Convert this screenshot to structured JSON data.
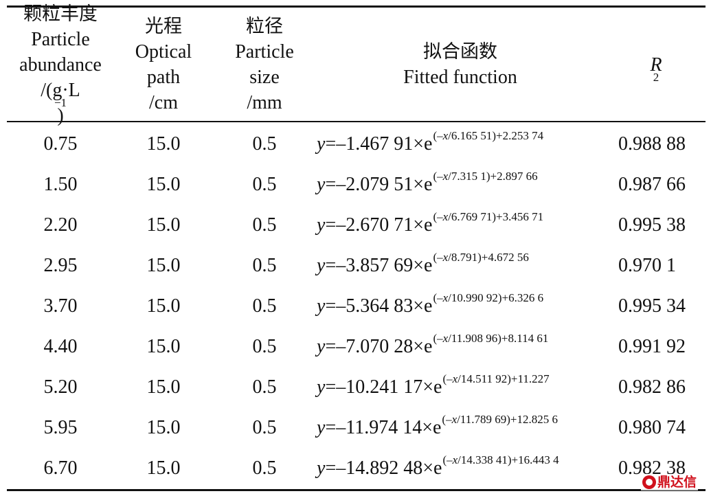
{
  "table": {
    "headers": {
      "abundance": {
        "zh": "颗粒丰度",
        "en1": "Particle",
        "en2": "abundance",
        "unit_pre": "/(g·L",
        "unit_sup": "−1",
        "unit_post": ")"
      },
      "path": {
        "zh": "光程",
        "en1": "Optical",
        "en2": "path",
        "unit": "/cm"
      },
      "size": {
        "zh": "粒径",
        "en1": "Particle",
        "en2": "size",
        "unit": "/mm"
      },
      "function": {
        "zh": "拟合函数",
        "en": "Fitted function"
      },
      "r2": {
        "base": "R",
        "sup": "2"
      }
    },
    "rows": [
      {
        "abundance": "0.75",
        "path": "15.0",
        "size": "0.5",
        "y": "y",
        "coef": "=–1.467 91×e",
        "exp_pre": "(–",
        "exp_x": "x",
        "exp_post": "/6.165 51)+2.253 74",
        "r2": "0.988 88"
      },
      {
        "abundance": "1.50",
        "path": "15.0",
        "size": "0.5",
        "y": "y",
        "coef": "=–2.079 51×e",
        "exp_pre": "(–",
        "exp_x": "x",
        "exp_post": "/7.315 1)+2.897 66",
        "r2": "0.987 66"
      },
      {
        "abundance": "2.20",
        "path": "15.0",
        "size": "0.5",
        "y": "y",
        "coef": "=–2.670 71×e",
        "exp_pre": "(–",
        "exp_x": "x",
        "exp_post": "/6.769 71)+3.456 71",
        "r2": "0.995 38"
      },
      {
        "abundance": "2.95",
        "path": "15.0",
        "size": "0.5",
        "y": "y",
        "coef": "=–3.857 69×e",
        "exp_pre": "(–",
        "exp_x": "x",
        "exp_post": "/8.791)+4.672 56",
        "r2": "0.970 1"
      },
      {
        "abundance": "3.70",
        "path": "15.0",
        "size": "0.5",
        "y": "y",
        "coef": "=–5.364 83×e",
        "exp_pre": "(–",
        "exp_x": "x",
        "exp_post": "/10.990 92)+6.326 6",
        "r2": "0.995 34"
      },
      {
        "abundance": "4.40",
        "path": "15.0",
        "size": "0.5",
        "y": "y",
        "coef": "=–7.070 28×e",
        "exp_pre": "(–",
        "exp_x": "x",
        "exp_post": "/11.908 96)+8.114 61",
        "r2": "0.991 92"
      },
      {
        "abundance": "5.20",
        "path": "15.0",
        "size": "0.5",
        "y": "y",
        "coef": "=–10.241 17×e",
        "exp_pre": "(–",
        "exp_x": "x",
        "exp_post": "/14.511 92)+11.227",
        "r2": "0.982 86"
      },
      {
        "abundance": "5.95",
        "path": "15.0",
        "size": "0.5",
        "y": "y",
        "coef": "=–11.974 14×e",
        "exp_pre": "(–",
        "exp_x": "x",
        "exp_post": "/11.789 69)+12.825 6",
        "r2": "0.980 74"
      },
      {
        "abundance": "6.70",
        "path": "15.0",
        "size": "0.5",
        "y": "y",
        "coef": "=–14.892 48×e",
        "exp_pre": "(–",
        "exp_x": "x",
        "exp_post": "/14.338 41)+16.443 4",
        "r2": "0.982 38"
      }
    ]
  },
  "watermark": {
    "text": "鼎达信",
    "brand_color": "#d0101c"
  }
}
